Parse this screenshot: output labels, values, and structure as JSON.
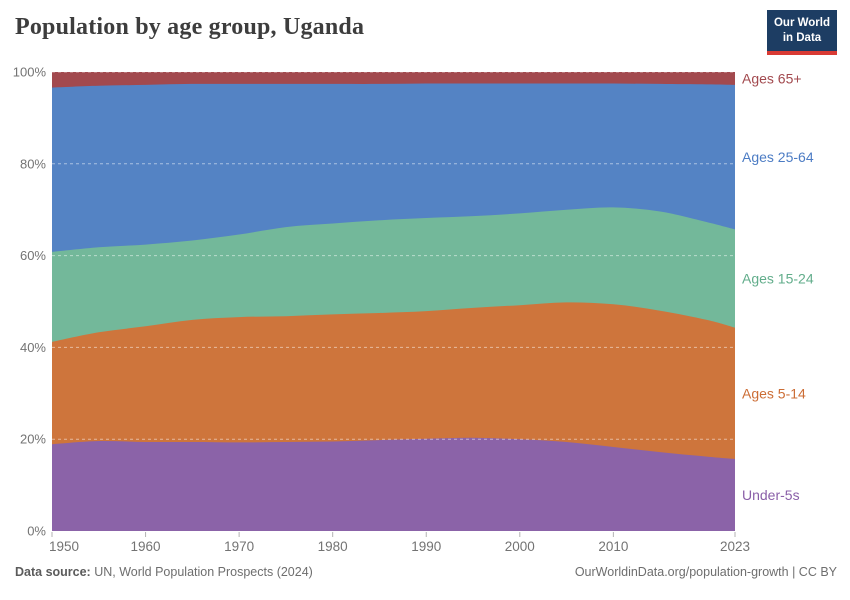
{
  "header": {
    "title": "Population by age group, Uganda",
    "logo": {
      "line1": "Our World",
      "line2": "in Data",
      "bg_color": "#1D3D63",
      "accent_color": "#D93A34"
    }
  },
  "chart_data": {
    "type": "area",
    "stacked": true,
    "normalized_percent": true,
    "title": "Population by age group, Uganda",
    "xlabel": "",
    "ylabel": "",
    "ylim": [
      0,
      100
    ],
    "grid": "dashed-horizontal",
    "legend_position": "right",
    "x": [
      1950,
      1955,
      1960,
      1965,
      1970,
      1975,
      1980,
      1985,
      1990,
      1995,
      2000,
      2005,
      2010,
      2015,
      2020,
      2023
    ],
    "x_ticks": [
      1950,
      1960,
      1970,
      1980,
      1990,
      2000,
      2010,
      2023
    ],
    "y_ticks": [
      0,
      20,
      40,
      60,
      80,
      100
    ],
    "y_tick_suffix": "%",
    "series": [
      {
        "id": "under-5s",
        "name": "Under-5s",
        "color": "#8B63A8",
        "label_color": "#8A5FA8",
        "values": [
          18.9,
          19.6,
          19.4,
          19.4,
          19.3,
          19.4,
          19.5,
          19.8,
          20.1,
          20.3,
          20.0,
          19.4,
          18.3,
          17.2,
          16.2,
          15.7
        ]
      },
      {
        "id": "ages-5-14",
        "name": "Ages 5-14",
        "color": "#CE753C",
        "label_color": "#CC6D35",
        "values": [
          22.3,
          23.7,
          25.2,
          26.6,
          27.3,
          27.4,
          27.7,
          27.7,
          27.8,
          28.3,
          29.2,
          30.4,
          31.1,
          30.8,
          29.8,
          28.6
        ]
      },
      {
        "id": "ages-15-24",
        "name": "Ages 15-24",
        "color": "#73B89A",
        "label_color": "#62AD8B",
        "values": [
          19.6,
          18.5,
          17.8,
          17.3,
          18.0,
          19.4,
          19.8,
          20.2,
          20.3,
          20.0,
          20.0,
          20.2,
          21.1,
          21.6,
          21.3,
          21.4
        ]
      },
      {
        "id": "ages-25-64",
        "name": "Ages 25-64",
        "color": "#5483C4",
        "label_color": "#4C7CC4",
        "values": [
          35.8,
          35.2,
          34.8,
          34.1,
          32.8,
          31.2,
          30.4,
          29.7,
          29.3,
          28.9,
          28.3,
          27.5,
          27.0,
          27.8,
          30.0,
          31.5
        ]
      },
      {
        "id": "ages-65-plus",
        "name": "Ages 65+",
        "color": "#A2494E",
        "label_color": "#A2494E",
        "values": [
          3.4,
          3.0,
          2.8,
          2.6,
          2.6,
          2.6,
          2.6,
          2.6,
          2.5,
          2.5,
          2.5,
          2.5,
          2.5,
          2.6,
          2.7,
          2.8
        ]
      }
    ],
    "axis_text_color": "#737373",
    "tick_mark_color": "#b3b3b3"
  },
  "footer": {
    "source_label": "Data source:",
    "source_text": " UN, World Population Prospects (2024)",
    "credit": "OurWorldinData.org/population-growth | CC BY"
  }
}
